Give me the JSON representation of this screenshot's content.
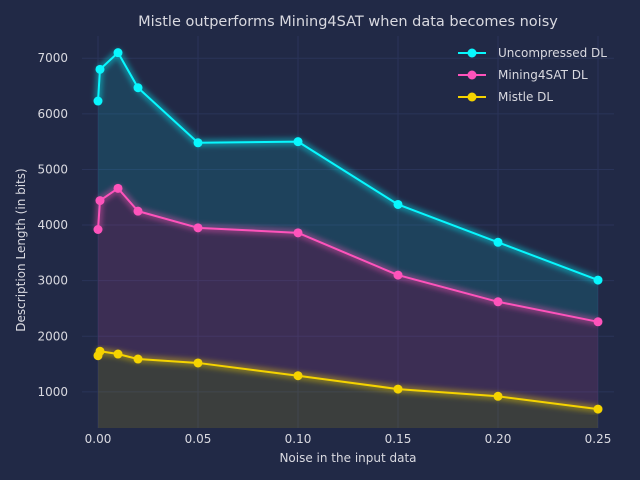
{
  "chart_data": {
    "type": "line",
    "title": "Mistle outperforms Mining4SAT when data becomes noisy",
    "xlabel": "Noise in the input data",
    "ylabel": "Description Length (in bits)",
    "x": [
      0.0,
      0.001,
      0.01,
      0.02,
      0.05,
      0.1,
      0.15,
      0.2,
      0.25
    ],
    "xlim": [
      -0.008,
      0.258
    ],
    "ylim": [
      350,
      7400
    ],
    "x_ticks": [
      0.0,
      0.05,
      0.1,
      0.15,
      0.2,
      0.25
    ],
    "x_tick_labels": [
      "0.00",
      "0.05",
      "0.10",
      "0.15",
      "0.20",
      "0.25"
    ],
    "y_ticks": [
      1000,
      2000,
      3000,
      4000,
      5000,
      6000,
      7000
    ],
    "y_tick_labels": [
      "1000",
      "2000",
      "3000",
      "4000",
      "5000",
      "6000",
      "7000"
    ],
    "grid": true,
    "legend_position": "top-right",
    "series": [
      {
        "name": "Uncompressed DL",
        "color": "#08F7FE",
        "values": [
          6230,
          6800,
          7100,
          6470,
          5480,
          5500,
          4370,
          3690,
          3010
        ]
      },
      {
        "name": "Mining4SAT DL",
        "color": "#FE53BB",
        "values": [
          3920,
          4440,
          4660,
          4250,
          3950,
          3860,
          3100,
          2620,
          2260
        ]
      },
      {
        "name": "Mistle DL",
        "color": "#F5D300",
        "values": [
          1650,
          1730,
          1680,
          1590,
          1520,
          1290,
          1050,
          920,
          690
        ]
      }
    ]
  }
}
